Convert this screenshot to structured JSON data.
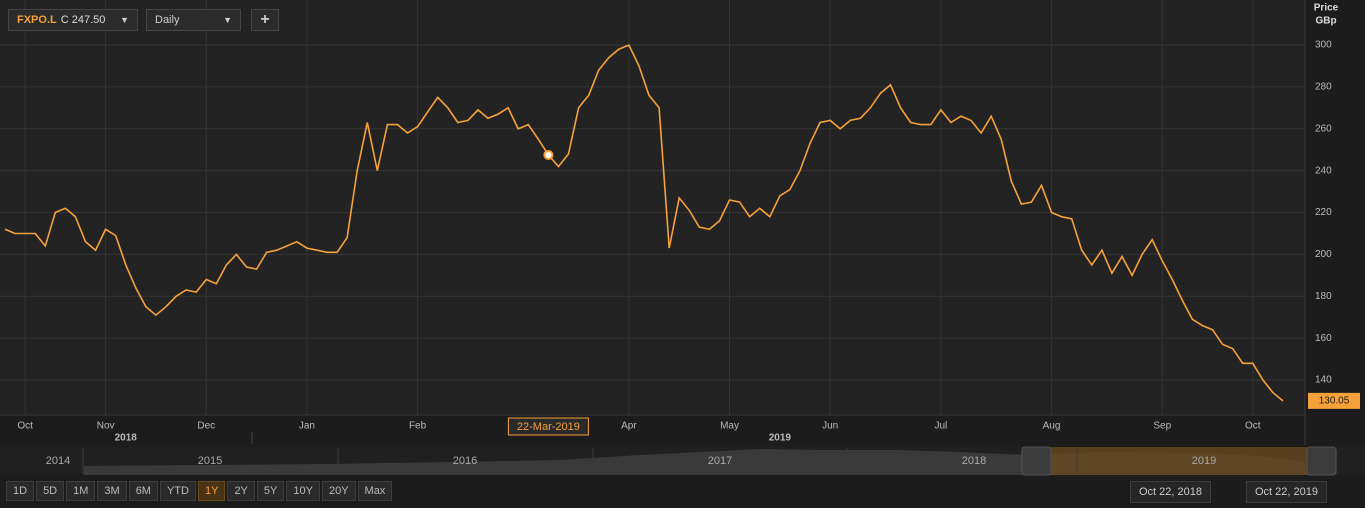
{
  "toolbar": {
    "symbol": "FXPO.L",
    "quote": "C 247.50",
    "interval": "Daily",
    "add": "+"
  },
  "chart_data": {
    "type": "line",
    "axis_title": [
      "Price",
      "GBp"
    ],
    "categories": [
      null,
      null,
      "Oct",
      null,
      null,
      null,
      null,
      null,
      null,
      null,
      "Nov",
      null,
      null,
      null,
      null,
      null,
      null,
      null,
      null,
      null,
      "Dec",
      null,
      null,
      null,
      null,
      null,
      null,
      null,
      null,
      null,
      "Jan",
      null,
      null,
      null,
      null,
      null,
      null,
      null,
      null,
      null,
      null,
      "Feb",
      null,
      null,
      null,
      null,
      null,
      null,
      null,
      null,
      null,
      null,
      null,
      null,
      "22-Mar-2019",
      null,
      null,
      null,
      null,
      null,
      null,
      null,
      "Apr",
      null,
      null,
      null,
      null,
      null,
      null,
      null,
      null,
      null,
      "May",
      null,
      null,
      null,
      null,
      null,
      null,
      null,
      null,
      null,
      "Jun",
      null,
      null,
      null,
      null,
      null,
      null,
      null,
      null,
      null,
      null,
      "Jul",
      null,
      null,
      null,
      null,
      null,
      null,
      null,
      null,
      null,
      null,
      "Aug",
      null,
      null,
      null,
      null,
      null,
      null,
      null,
      null,
      null,
      null,
      "Sep",
      null,
      null,
      null,
      null,
      null,
      null,
      null,
      null,
      "Oct",
      null,
      null,
      null
    ],
    "year_labels": [
      "2018",
      "2019"
    ],
    "series": [
      {
        "name": "FXPO.L",
        "color": "#f7a13b",
        "values": [
          212,
          210,
          210,
          210,
          204,
          220,
          222,
          218,
          206,
          202,
          212,
          209,
          195,
          184,
          175,
          171,
          175,
          180,
          183,
          182,
          188,
          186,
          195,
          200,
          194,
          193,
          201,
          202,
          204,
          206,
          203,
          202,
          201,
          201,
          208,
          240,
          263,
          240,
          262,
          262,
          258,
          261,
          268,
          275,
          270,
          263,
          264,
          269,
          265,
          267,
          270,
          260,
          262,
          255,
          247.5,
          242,
          248,
          270,
          276,
          288,
          294,
          298,
          300,
          290,
          276,
          270,
          203,
          227,
          221,
          213,
          212,
          216,
          226,
          225,
          218,
          222,
          218,
          228,
          231,
          240,
          253,
          263,
          264,
          260,
          264,
          265,
          270,
          277,
          281,
          270,
          263,
          262,
          262,
          269,
          263,
          266,
          264,
          258,
          266,
          255,
          235,
          224,
          225,
          233,
          220,
          218,
          217,
          202,
          195,
          202,
          191,
          199,
          190,
          200,
          207,
          197,
          188,
          178,
          169,
          166,
          164,
          157,
          155,
          148,
          148,
          140,
          134,
          130.05
        ]
      }
    ],
    "ylim": [
      123.3,
      321.5
    ],
    "yticks": [
      140,
      160,
      180,
      200,
      220,
      240,
      260,
      280,
      300
    ],
    "grid": true
  },
  "navigator": {
    "years": [
      "2014",
      "2015",
      "2016",
      "2017",
      "2018",
      "2019"
    ]
  },
  "ranges": [
    "1D",
    "5D",
    "1M",
    "3M",
    "6M",
    "YTD",
    "1Y",
    "2Y",
    "5Y",
    "10Y",
    "20Y",
    "Max"
  ],
  "date_range": [
    "Oct 22, 2018",
    "Oct 22, 2019"
  ]
}
